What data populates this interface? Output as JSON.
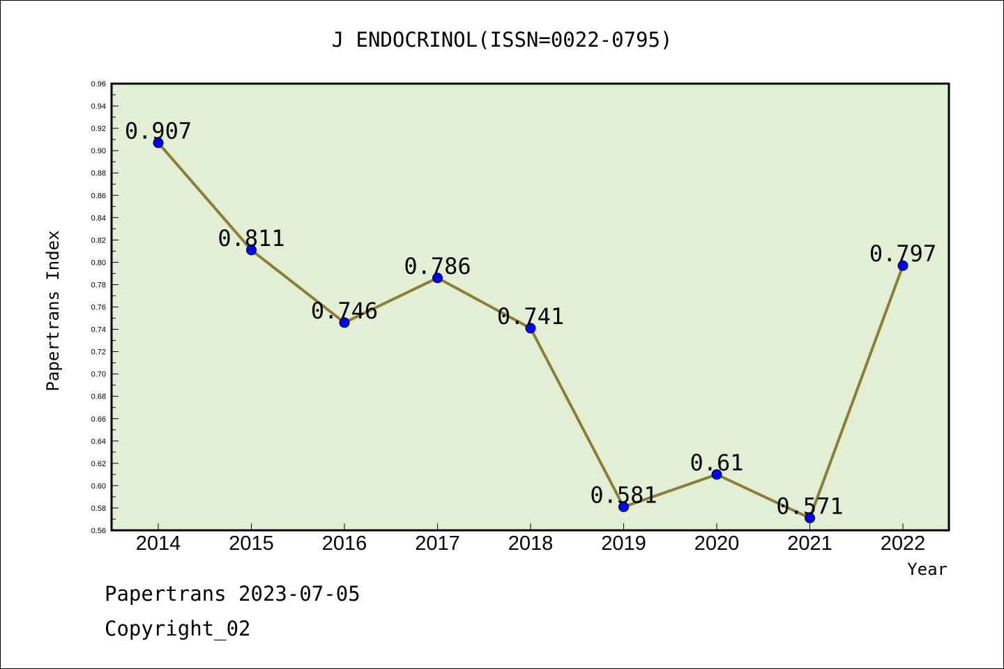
{
  "chart_data": {
    "type": "line",
    "title": "J ENDOCRINOL(ISSN=0022-0795)",
    "xlabel": "Year",
    "ylabel": "Papertrans Index",
    "categories": [
      "2014",
      "2015",
      "2016",
      "2017",
      "2018",
      "2019",
      "2020",
      "2021",
      "2022"
    ],
    "series": [
      {
        "values": [
          0.907,
          0.811,
          0.746,
          0.786,
          0.741,
          0.581,
          0.61,
          0.571,
          0.797
        ],
        "labels": [
          "0.907",
          "0.811",
          "0.746",
          "0.786",
          "0.741",
          "0.581",
          "0.61",
          "0.571",
          "0.797"
        ]
      }
    ],
    "ylim": [
      0.56,
      0.96
    ],
    "yticks": [
      "0.56",
      "0.58",
      "0.60",
      "0.62",
      "0.64",
      "0.66",
      "0.68",
      "0.70",
      "0.72",
      "0.74",
      "0.76",
      "0.78",
      "0.80",
      "0.82",
      "0.84",
      "0.86",
      "0.88",
      "0.90",
      "0.92",
      "0.94",
      "0.96"
    ],
    "grid": false,
    "colors": {
      "plot_background": "#e2efd5",
      "line": "#8b7f38",
      "marker": "#0000ff"
    }
  },
  "footer": {
    "date_line": "Papertrans 2023-07-05",
    "copyright": "Copyright_02"
  }
}
